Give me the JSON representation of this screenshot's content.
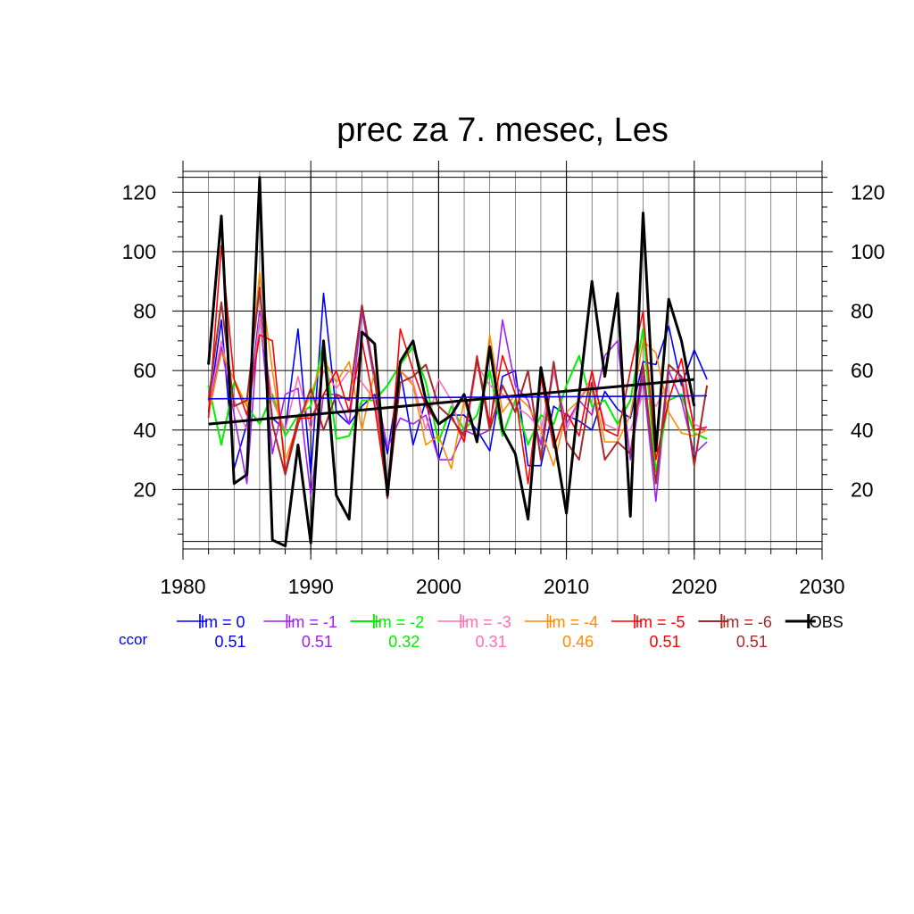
{
  "chart_data": {
    "type": "line",
    "title": "prec za 7. mesec, Les",
    "xlabel": "",
    "ylabel": "",
    "xlim": [
      1980,
      2030
    ],
    "ylim": [
      0,
      127
    ],
    "x_ticks": [
      1980,
      1990,
      2000,
      2010,
      2020,
      2030
    ],
    "y_ticks": [
      20,
      40,
      60,
      80,
      100,
      120
    ],
    "grid": true,
    "ccor_label": "ccor",
    "x": [
      1982,
      1983,
      1984,
      1985,
      1986,
      1987,
      1988,
      1989,
      1990,
      1991,
      1992,
      1993,
      1994,
      1995,
      1996,
      1997,
      1998,
      1999,
      2000,
      2001,
      2002,
      2003,
      2004,
      2005,
      2006,
      2007,
      2008,
      2009,
      2010,
      2011,
      2012,
      2013,
      2014,
      2015,
      2016,
      2017,
      2018,
      2019,
      2020,
      2021
    ],
    "series": [
      {
        "name": "lm = 0",
        "ccor": "0.51",
        "color": "#0000ff",
        "width": 1.6,
        "values": [
          46,
          77,
          27,
          42,
          80,
          44,
          40,
          74,
          25,
          86,
          46,
          42,
          48,
          52,
          32,
          60,
          35,
          50,
          30,
          45,
          45,
          40,
          33,
          58,
          60,
          28,
          28,
          48,
          45,
          43,
          40,
          53,
          47,
          44,
          63,
          62,
          75,
          55,
          67,
          57
        ]
      },
      {
        "name": "lm = -1",
        "ccor": "0.51",
        "color": "#a020f0",
        "width": 1.6,
        "values": [
          47,
          68,
          45,
          22,
          80,
          32,
          52,
          54,
          18,
          52,
          52,
          42,
          80,
          56,
          34,
          44,
          42,
          45,
          30,
          30,
          40,
          38,
          40,
          77,
          55,
          50,
          35,
          60,
          42,
          50,
          45,
          65,
          70,
          30,
          58,
          16,
          60,
          50,
          32,
          36
        ]
      },
      {
        "name": "lm = -2",
        "ccor": "0.32",
        "color": "#00ee00",
        "width": 2.0,
        "values": [
          55,
          35,
          56,
          48,
          42,
          52,
          38,
          45,
          48,
          70,
          37,
          38,
          50,
          50,
          55,
          62,
          68,
          56,
          36,
          48,
          40,
          45,
          60,
          38,
          50,
          35,
          45,
          42,
          55,
          65,
          48,
          50,
          42,
          50,
          74,
          26,
          50,
          52,
          39,
          37
        ]
      },
      {
        "name": "lm = -3",
        "ccor": "0.31",
        "color": "#ff6eb4",
        "width": 1.6,
        "values": [
          48,
          70,
          50,
          40,
          78,
          50,
          40,
          58,
          40,
          60,
          54,
          60,
          56,
          50,
          22,
          60,
          56,
          40,
          57,
          50,
          36,
          62,
          55,
          52,
          48,
          45,
          40,
          60,
          40,
          50,
          58,
          42,
          40,
          40,
          52,
          48,
          56,
          58,
          42,
          40
        ]
      },
      {
        "name": "lm = -4",
        "ccor": "0.46",
        "color": "#ff8c00",
        "width": 1.6,
        "values": [
          45,
          66,
          57,
          48,
          93,
          60,
          30,
          42,
          52,
          64,
          56,
          63,
          40,
          60,
          20,
          60,
          55,
          35,
          38,
          27,
          50,
          36,
          72,
          46,
          52,
          48,
          40,
          28,
          46,
          50,
          56,
          36,
          36,
          45,
          70,
          66,
          46,
          39,
          38,
          40
        ]
      },
      {
        "name": "lm = -5",
        "ccor": "0.51",
        "color": "#ff0000",
        "width": 1.6,
        "values": [
          44,
          102,
          57,
          45,
          72,
          70,
          26,
          44,
          44,
          52,
          60,
          46,
          70,
          48,
          18,
          74,
          60,
          48,
          42,
          45,
          36,
          65,
          42,
          65,
          52,
          22,
          58,
          34,
          46,
          38,
          60,
          40,
          38,
          60,
          80,
          30,
          50,
          64,
          40,
          41
        ]
      },
      {
        "name": "lm = -6",
        "ccor": "0.51",
        "color": "#a52a2a",
        "width": 2.0,
        "values": [
          50,
          83,
          48,
          50,
          88,
          42,
          25,
          42,
          54,
          40,
          52,
          50,
          82,
          58,
          17,
          56,
          58,
          62,
          48,
          44,
          38,
          64,
          40,
          55,
          46,
          60,
          30,
          63,
          36,
          30,
          56,
          30,
          36,
          32,
          62,
          22,
          62,
          58,
          28,
          55
        ]
      },
      {
        "name": "OBS",
        "ccor": "",
        "color": "#000000",
        "width": 3.0,
        "values": [
          62,
          112,
          22,
          25,
          125,
          3,
          1,
          35,
          2,
          70,
          18,
          10,
          73,
          69,
          18,
          63,
          70,
          50,
          42,
          45,
          52,
          36,
          68,
          40,
          32,
          10,
          61,
          38,
          12,
          52,
          90,
          58,
          86,
          11,
          113,
          33,
          84,
          70,
          48,
          null
        ]
      }
    ],
    "trend_lines": [
      {
        "of": "OBS",
        "color": "#000000",
        "x": [
          1982,
          2020
        ],
        "y": [
          42,
          57
        ]
      },
      {
        "of": "lm = 0",
        "color": "#0000ff",
        "x": [
          1982,
          2021
        ],
        "y": [
          50.5,
          51.5
        ]
      }
    ]
  }
}
